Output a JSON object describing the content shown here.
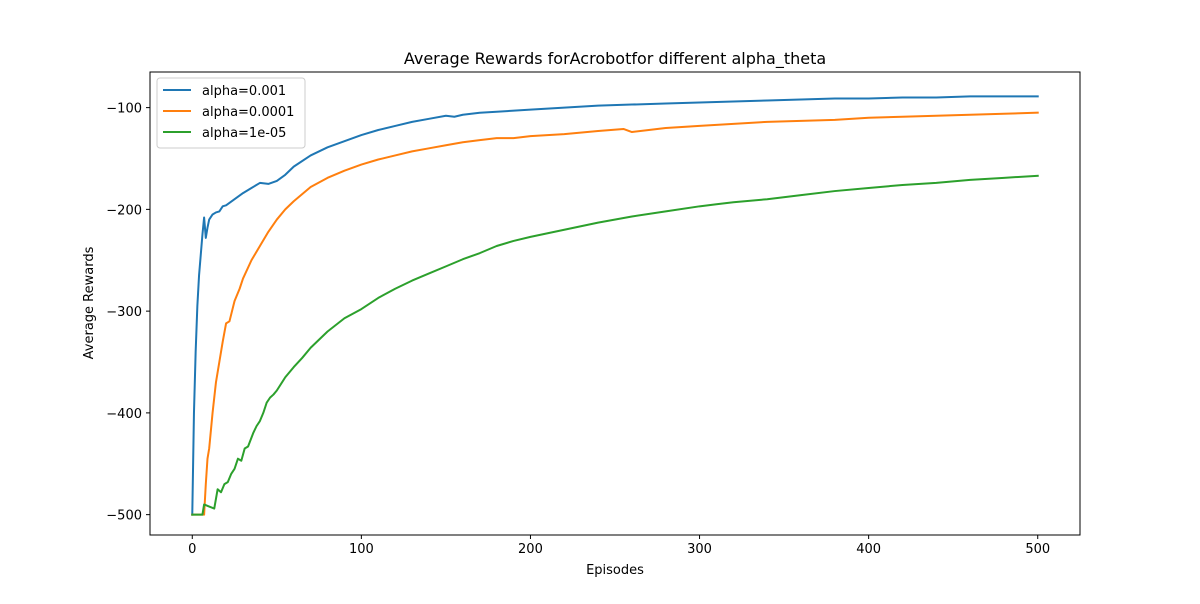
{
  "chart_data": {
    "type": "line",
    "title": "Average Rewards forAcrobotfor different alpha_theta",
    "xlabel": "Episodes",
    "ylabel": "Average Rewards",
    "xlim": [
      -25,
      525
    ],
    "ylim": [
      -520,
      -65
    ],
    "xticks": [
      0,
      100,
      200,
      300,
      400,
      500
    ],
    "yticks": [
      -500,
      -400,
      -300,
      -200,
      -100
    ],
    "xtick_labels": [
      "0",
      "100",
      "200",
      "300",
      "400",
      "500"
    ],
    "ytick_labels": [
      "−500",
      "−400",
      "−300",
      "−200",
      "−100"
    ],
    "grid": false,
    "legend_position": "upper-left",
    "series": [
      {
        "name": "alpha=0.001",
        "color": "#1f77b4",
        "x": [
          0,
          1,
          2,
          3,
          4,
          5,
          6,
          7,
          8,
          9,
          10,
          12,
          14,
          16,
          18,
          20,
          25,
          30,
          35,
          40,
          45,
          50,
          55,
          60,
          70,
          80,
          90,
          100,
          110,
          120,
          130,
          140,
          150,
          155,
          160,
          170,
          180,
          200,
          220,
          240,
          260,
          280,
          300,
          320,
          340,
          360,
          380,
          400,
          420,
          440,
          460,
          480,
          500
        ],
        "y": [
          -500,
          -400,
          -340,
          -295,
          -265,
          -245,
          -225,
          -208,
          -228,
          -218,
          -210,
          -205,
          -203,
          -202,
          -197,
          -196,
          -190,
          -184,
          -179,
          -174,
          -175,
          -172,
          -166,
          -158,
          -147,
          -139,
          -133,
          -127,
          -122,
          -118,
          -114,
          -111,
          -108,
          -109,
          -107,
          -105,
          -104,
          -102,
          -100,
          -98,
          -97,
          -96,
          -95,
          -94,
          -93,
          -92,
          -91,
          -91,
          -90,
          -90,
          -89,
          -89,
          -89
        ]
      },
      {
        "name": "alpha=0.0001",
        "color": "#ff7f0e",
        "x": [
          0,
          7,
          8,
          9,
          10,
          12,
          14,
          16,
          18,
          20,
          22,
          25,
          28,
          30,
          35,
          40,
          45,
          50,
          55,
          60,
          70,
          80,
          90,
          100,
          110,
          120,
          130,
          140,
          150,
          160,
          170,
          180,
          190,
          200,
          220,
          240,
          255,
          260,
          270,
          280,
          300,
          320,
          340,
          360,
          380,
          400,
          420,
          440,
          460,
          480,
          500
        ],
        "y": [
          -500,
          -500,
          -470,
          -445,
          -435,
          -400,
          -370,
          -350,
          -330,
          -312,
          -310,
          -290,
          -278,
          -268,
          -250,
          -236,
          -222,
          -210,
          -200,
          -192,
          -178,
          -169,
          -162,
          -156,
          -151,
          -147,
          -143,
          -140,
          -137,
          -134,
          -132,
          -130,
          -130,
          -128,
          -126,
          -123,
          -121,
          -124,
          -122,
          -120,
          -118,
          -116,
          -114,
          -113,
          -112,
          -110,
          -109,
          -108,
          -107,
          -106,
          -105
        ]
      },
      {
        "name": "alpha=1e-05",
        "color": "#2ca02c",
        "x": [
          0,
          6,
          7,
          10,
          13,
          15,
          17,
          19,
          21,
          23,
          25,
          27,
          29,
          31,
          33,
          36,
          38,
          40,
          42,
          44,
          46,
          48,
          50,
          55,
          60,
          65,
          70,
          80,
          90,
          100,
          110,
          120,
          130,
          140,
          150,
          160,
          170,
          180,
          190,
          200,
          220,
          240,
          260,
          280,
          300,
          310,
          320,
          340,
          360,
          380,
          400,
          420,
          440,
          460,
          480,
          500
        ],
        "y": [
          -500,
          -500,
          -490,
          -492,
          -494,
          -475,
          -478,
          -470,
          -468,
          -460,
          -455,
          -445,
          -447,
          -435,
          -433,
          -420,
          -413,
          -408,
          -400,
          -390,
          -385,
          -382,
          -378,
          -365,
          -355,
          -346,
          -336,
          -320,
          -307,
          -298,
          -287,
          -278,
          -270,
          -263,
          -256,
          -249,
          -243,
          -236,
          -231,
          -227,
          -220,
          -213,
          -207,
          -202,
          -197,
          -195,
          -193,
          -190,
          -186,
          -182,
          -179,
          -176,
          -174,
          -171,
          -169,
          -167
        ]
      }
    ]
  }
}
